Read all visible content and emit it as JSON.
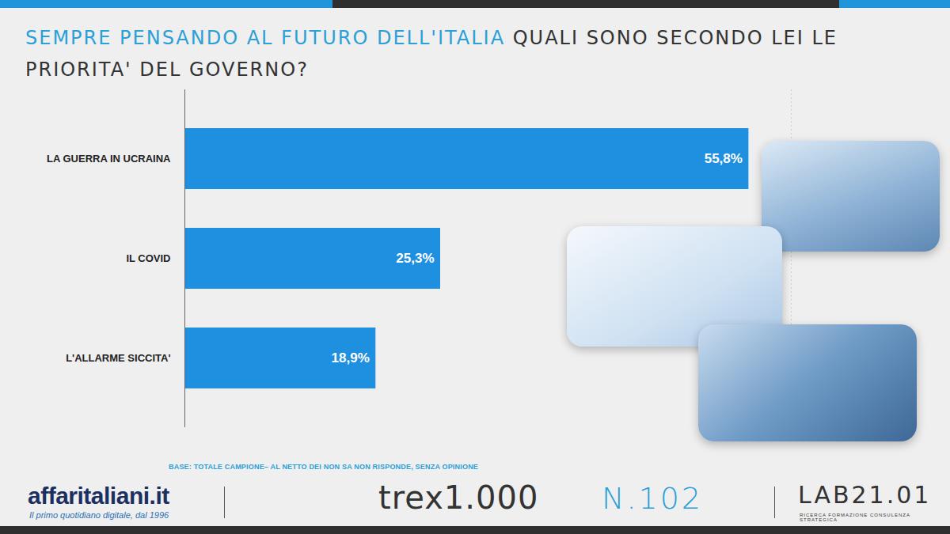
{
  "chart_data": {
    "type": "bar",
    "orientation": "horizontal",
    "title": "SEMPRE PENSANDO AL FUTURO DELL'ITALIA QUALI SONO SECONDO LEI LE PRIORITA' DEL GOVERNO?",
    "title_highlight": "SEMPRE PENSANDO AL FUTURO DELL'ITALIA",
    "categories": [
      "LA GUERRA IN UCRAINA",
      "IL COVID",
      "L'ALLARME SICCITA'"
    ],
    "values": [
      55.8,
      25.3,
      18.9
    ],
    "value_labels": [
      "55,8%",
      "25,3%",
      "18,9%"
    ],
    "color": "#1f8fe0",
    "xlim": [
      0,
      60
    ],
    "data_labels": true,
    "tick_labels": "y",
    "grid": false,
    "caption": "BASE: TOTALE CAMPIONE– AL NETTO DEI NON SA NON RISPONDE, SENZA OPINIONE",
    "footer": {
      "brand": "affaritaliani.it",
      "tagline": "Il primo quotidiano digitale, dal 1996",
      "logo": "trex1.000",
      "issue": "N.102",
      "lab": "LAB21.01",
      "lab_subtitle": "RICERCA FORMAZIONE CONSULENZA STRATEGICA"
    }
  }
}
